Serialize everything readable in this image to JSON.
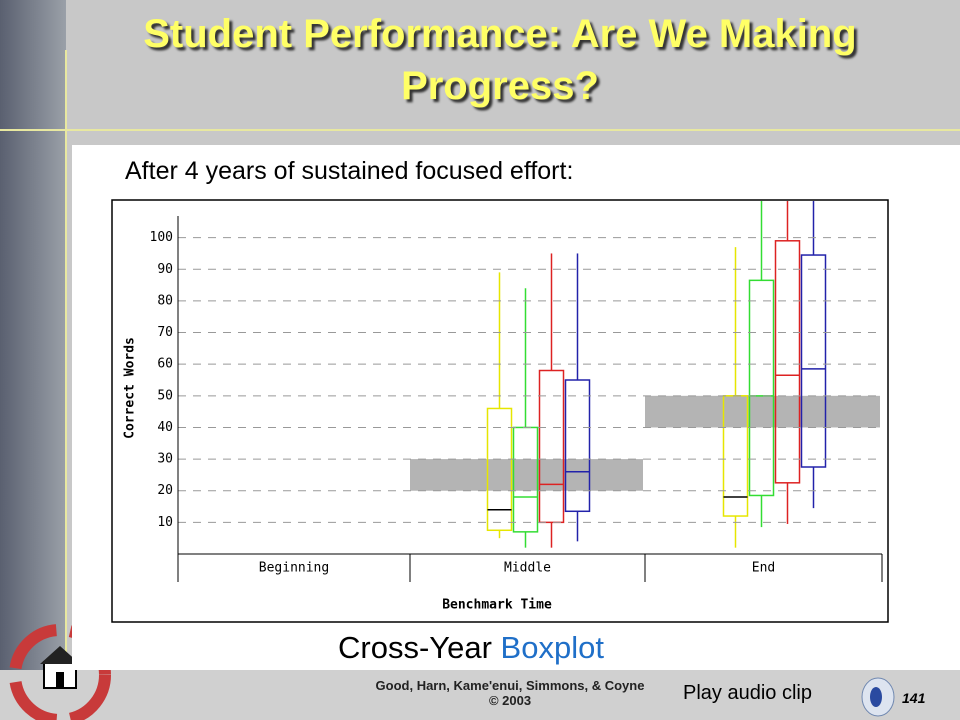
{
  "slide": {
    "title": "Student Performance: Are We Making Progress?",
    "subtitle": "After 4 years of sustained focused effort:",
    "caption": "Cross-Year ",
    "caption_link": "Boxplot",
    "footer": [
      "Good, Harn, Kame'enui, Simmons, & Coyne",
      "© 2003"
    ],
    "audio": "Play audio clip",
    "page": "141"
  },
  "chart_data": {
    "type": "boxplot",
    "categories": [
      "Beginning",
      "Middle",
      "End"
    ],
    "xlabel": "Benchmark Time",
    "ylabel": "Correct Words",
    "ylim": [
      0,
      110
    ],
    "yticks": [
      10,
      20,
      30,
      40,
      50,
      60,
      70,
      80,
      90,
      100
    ],
    "grid": true,
    "bands": {
      "color": "#b4b4b4",
      "low": [
        null,
        20,
        40
      ],
      "high": [
        null,
        30,
        50
      ]
    },
    "series": [
      {
        "color": "#e6e600",
        "min": [
          null,
          5,
          2
        ],
        "q1": [
          null,
          7.5,
          12
        ],
        "median": [
          null,
          14,
          18
        ],
        "q3": [
          null,
          46,
          50
        ],
        "max": [
          null,
          89,
          97
        ]
      },
      {
        "color": "#33dd33",
        "min": [
          null,
          2,
          8.5
        ],
        "q1": [
          null,
          7,
          18.5
        ],
        "median": [
          null,
          18,
          50
        ],
        "q3": [
          null,
          40,
          86.5
        ],
        "max": [
          null,
          84,
          112
        ]
      },
      {
        "color": "#dd2222",
        "min": [
          null,
          2,
          9.5
        ],
        "q1": [
          null,
          10,
          22.5
        ],
        "median": [
          null,
          22,
          56.5
        ],
        "q3": [
          null,
          58,
          99
        ],
        "max": [
          null,
          95,
          112
        ]
      },
      {
        "color": "#2222aa",
        "min": [
          null,
          4,
          14.5
        ],
        "q1": [
          null,
          13.5,
          27.5
        ],
        "median": [
          null,
          26,
          58.5
        ],
        "q3": [
          null,
          55,
          94.5
        ],
        "max": [
          null,
          95,
          112
        ]
      }
    ]
  }
}
